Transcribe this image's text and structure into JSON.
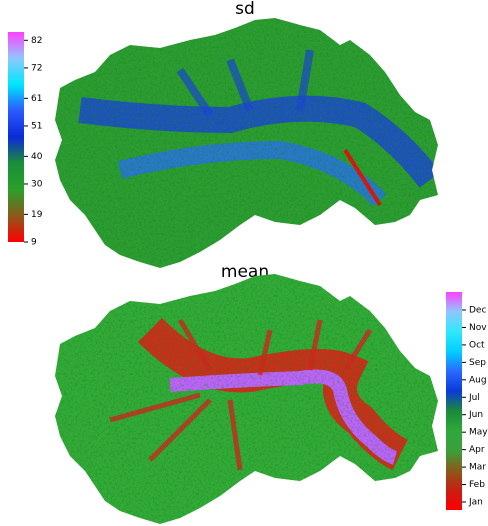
{
  "maps": [
    {
      "title": "sd",
      "legend": {
        "ticks": [
          9,
          19,
          30,
          40,
          51,
          61,
          72,
          82
        ],
        "lim": [
          9,
          85
        ],
        "colors": [
          "#ff0000",
          "#8b5a1a",
          "#2aa02a",
          "#1a8f3a",
          "#0a2ad8",
          "#2a5aff",
          "#00e5ff",
          "#8ec8ff",
          "#ff40ff"
        ]
      }
    },
    {
      "title": "mean",
      "legend": {
        "categories": [
          "Jan",
          "Feb",
          "Mar",
          "Apr",
          "May",
          "Jun",
          "Jul",
          "Aug",
          "Sep",
          "Oct",
          "Nov",
          "Dec"
        ],
        "colors": [
          "#ff0000",
          "#c81e14",
          "#8b5a1a",
          "#3aa03a",
          "#2fa83a",
          "#1a8a3a",
          "#0a3ad8",
          "#2a6aff",
          "#00d0ff",
          "#30e8ff",
          "#8ec8ff",
          "#ff40ff"
        ]
      }
    }
  ]
}
